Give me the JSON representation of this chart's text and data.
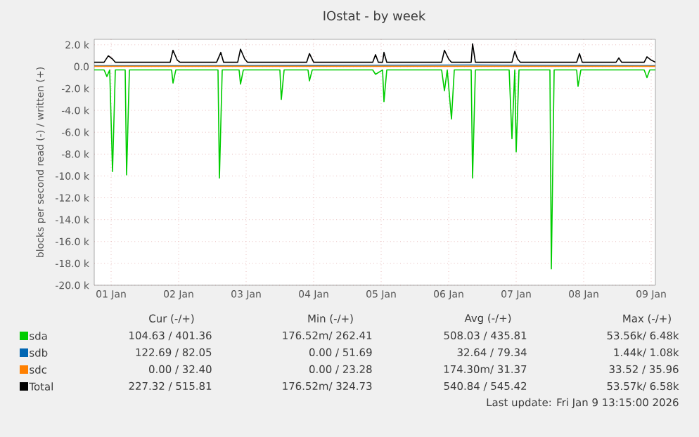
{
  "chart_data": {
    "type": "line",
    "title": "IOstat - by week",
    "ylabel": "blocks per second read (-) / written (+)",
    "xlim": [
      "2026-01-01T06:00",
      "2026-01-09T13:30"
    ],
    "xticks": [
      {
        "value": "2026-01-01T12:00",
        "label": "01 Jan"
      },
      {
        "value": "2026-01-02T12:00",
        "label": "02 Jan"
      },
      {
        "value": "2026-01-03T12:00",
        "label": "03 Jan"
      },
      {
        "value": "2026-01-04T12:00",
        "label": "04 Jan"
      },
      {
        "value": "2026-01-05T12:00",
        "label": "05 Jan"
      },
      {
        "value": "2026-01-06T12:00",
        "label": "06 Jan"
      },
      {
        "value": "2026-01-07T12:00",
        "label": "07 Jan"
      },
      {
        "value": "2026-01-08T12:00",
        "label": "08 Jan"
      },
      {
        "value": "2026-01-09T12:00",
        "label": "09 Jan"
      }
    ],
    "ylim": [
      -20000,
      2500
    ],
    "yticks": [
      {
        "value": 2000,
        "label": "2.0 k"
      },
      {
        "value": 0,
        "label": "0.0"
      },
      {
        "value": -2000,
        "label": "-2.0 k"
      },
      {
        "value": -4000,
        "label": "-4.0 k"
      },
      {
        "value": -6000,
        "label": "-6.0 k"
      },
      {
        "value": -8000,
        "label": "-8.0 k"
      },
      {
        "value": -10000,
        "label": "-10.0 k"
      },
      {
        "value": -12000,
        "label": "-12.0 k"
      },
      {
        "value": -14000,
        "label": "-14.0 k"
      },
      {
        "value": -16000,
        "label": "-16.0 k"
      },
      {
        "value": -18000,
        "label": "-18.0 k"
      },
      {
        "value": -20000,
        "label": "-20.0 k"
      }
    ],
    "grid": true,
    "legend": "bottom",
    "series": [
      {
        "name": "sda",
        "color": "#00cc00",
        "x": [
          "2026-01-01T06:00",
          "2026-01-01T09:30",
          "2026-01-01T10:30",
          "2026-01-01T11:30",
          "2026-01-01T12:30",
          "2026-01-01T13:30",
          "2026-01-01T17:00",
          "2026-01-01T17:30",
          "2026-01-01T18:30",
          "2026-01-02T09:30",
          "2026-01-02T10:00",
          "2026-01-02T11:00",
          "2026-01-03T02:00",
          "2026-01-03T02:30",
          "2026-01-03T03:30",
          "2026-01-03T09:30",
          "2026-01-03T10:00",
          "2026-01-03T11:00",
          "2026-01-04T00:00",
          "2026-01-04T00:30",
          "2026-01-04T01:30",
          "2026-01-04T10:00",
          "2026-01-04T10:30",
          "2026-01-04T11:30",
          "2026-01-05T09:00",
          "2026-01-05T10:00",
          "2026-01-05T12:30",
          "2026-01-05T13:00",
          "2026-01-05T14:00",
          "2026-01-06T09:30",
          "2026-01-06T10:30",
          "2026-01-06T11:30",
          "2026-01-06T13:00",
          "2026-01-06T14:00",
          "2026-01-06T20:00",
          "2026-01-06T20:30",
          "2026-01-06T21:30",
          "2026-01-07T09:30",
          "2026-01-07T10:30",
          "2026-01-07T11:30",
          "2026-01-07T12:00",
          "2026-01-07T13:00",
          "2026-01-08T00:00",
          "2026-01-08T00:30",
          "2026-01-08T01:30",
          "2026-01-08T09:30",
          "2026-01-08T10:00",
          "2026-01-08T11:00",
          "2026-01-09T09:30",
          "2026-01-09T10:30",
          "2026-01-09T11:30",
          "2026-01-09T13:30"
        ],
        "values": [
          -300,
          -300,
          -900,
          -300,
          -9600,
          -300,
          -300,
          -9900,
          -300,
          -300,
          -1500,
          -300,
          -300,
          -10200,
          -300,
          -300,
          -1600,
          -300,
          -300,
          -3000,
          -300,
          -300,
          -1300,
          -300,
          -300,
          -700,
          -300,
          -3200,
          -300,
          -300,
          -2200,
          -300,
          -4800,
          -300,
          -300,
          -10200,
          -300,
          -300,
          -6600,
          -300,
          -7800,
          -300,
          -300,
          -18500,
          -300,
          -300,
          -1800,
          -300,
          -300,
          -1000,
          -300,
          -300
        ]
      },
      {
        "name": "sdb",
        "color": "#0066b3",
        "x": [
          "2026-01-01T06:00",
          "2026-01-04T00:00",
          "2026-01-06T20:00",
          "2026-01-09T13:30"
        ],
        "values": [
          80,
          100,
          150,
          80
        ]
      },
      {
        "name": "sdc",
        "color": "#ff8000",
        "x": [
          "2026-01-01T06:00",
          "2026-01-09T13:30"
        ],
        "values": [
          30,
          30
        ]
      },
      {
        "name": "Total",
        "color": "#000000",
        "x": [
          "2026-01-01T06:00",
          "2026-01-01T09:30",
          "2026-01-01T11:00",
          "2026-01-01T12:30",
          "2026-01-01T13:30",
          "2026-01-02T09:00",
          "2026-01-02T10:00",
          "2026-01-02T11:30",
          "2026-01-02T12:30",
          "2026-01-03T01:30",
          "2026-01-03T03:00",
          "2026-01-03T04:00",
          "2026-01-03T09:00",
          "2026-01-03T10:00",
          "2026-01-03T11:30",
          "2026-01-03T12:30",
          "2026-01-04T09:30",
          "2026-01-04T10:30",
          "2026-01-04T12:00",
          "2026-01-05T09:00",
          "2026-01-05T10:00",
          "2026-01-05T11:00",
          "2026-01-05T12:30",
          "2026-01-05T13:00",
          "2026-01-05T14:00",
          "2026-01-06T09:30",
          "2026-01-06T10:30",
          "2026-01-06T12:00",
          "2026-01-06T13:00",
          "2026-01-06T20:00",
          "2026-01-06T20:30",
          "2026-01-06T21:30",
          "2026-01-07T10:30",
          "2026-01-07T11:30",
          "2026-01-07T12:30",
          "2026-01-07T13:30",
          "2026-01-08T09:30",
          "2026-01-08T10:30",
          "2026-01-08T11:30",
          "2026-01-08T23:30",
          "2026-01-09T00:30",
          "2026-01-09T01:30",
          "2026-01-09T09:30",
          "2026-01-09T10:30",
          "2026-01-09T12:00",
          "2026-01-09T13:30"
        ],
        "values": [
          400,
          400,
          1000,
          700,
          400,
          400,
          1500,
          600,
          400,
          400,
          1300,
          400,
          400,
          1600,
          700,
          400,
          400,
          1200,
          400,
          400,
          1100,
          400,
          400,
          1300,
          400,
          400,
          1500,
          700,
          400,
          400,
          2100,
          400,
          400,
          1400,
          700,
          400,
          400,
          1200,
          400,
          400,
          800,
          400,
          400,
          900,
          600,
          400
        ]
      }
    ],
    "annotations": [
      "Cur (-/+)",
      "Min (-/+)",
      "Avg (-/+)",
      "Max (-/+)",
      "104.63 / 401.36",
      "176.52m/ 262.41",
      "508.03 / 435.81",
      "53.56k/ 6.48k",
      "122.69 / 82.05",
      "0.00 / 51.69",
      "32.64 / 79.34",
      "1.44k/ 1.08k",
      "0.00 / 32.40",
      "0.00 / 23.28",
      "174.30m/ 31.37",
      "33.52 / 35.96",
      "227.32 / 515.81",
      "176.52m/ 324.73",
      "540.84 / 545.42",
      "53.57k/ 6.58k",
      "Last update: Fri Jan  9 13:15:00 2026"
    ]
  }
}
